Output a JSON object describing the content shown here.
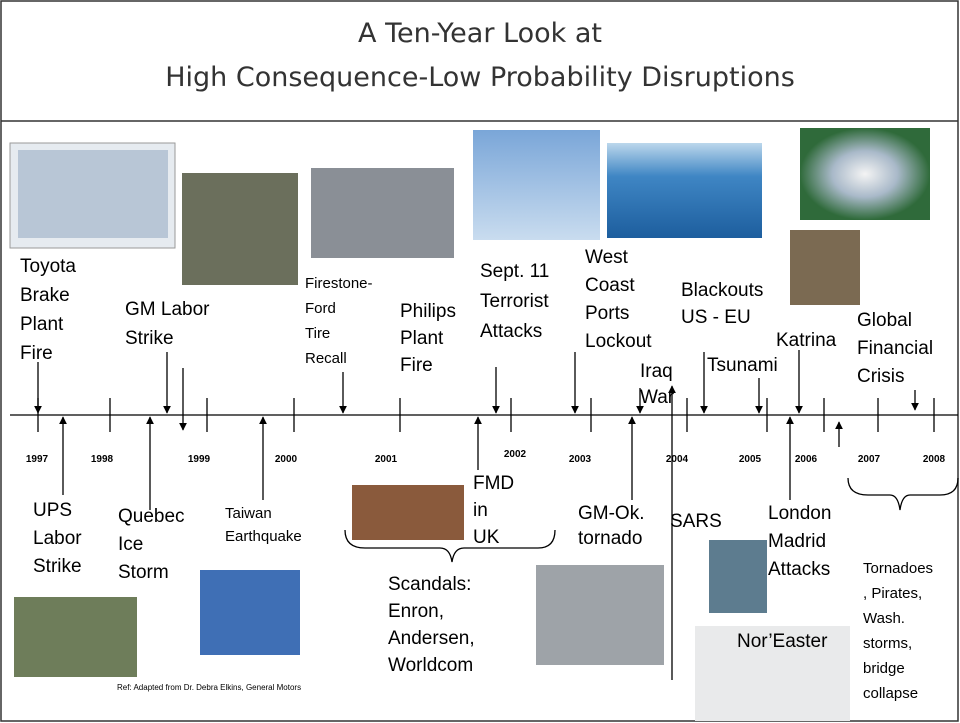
{
  "title": [
    "A Ten-Year Look at",
    "High Consequence-Low Probability Disruptions"
  ],
  "years": [
    "1997",
    "1998",
    "1999",
    "2000",
    "2001",
    "2002",
    "2003",
    "2004",
    "2005",
    "2006",
    "2007",
    "2008"
  ],
  "events_above": [
    {
      "lines": [
        "Toyota",
        "Brake",
        "Plant",
        "Fire"
      ]
    },
    {
      "lines": [
        "GM Labor",
        "Strike"
      ]
    },
    {
      "lines": [
        "Firestone-",
        "Ford",
        "Tire",
        "Recall"
      ]
    },
    {
      "lines": [
        "Philips",
        "Plant",
        "Fire"
      ]
    },
    {
      "lines": [
        "Sept. 11",
        "Terrorist",
        "Attacks"
      ]
    },
    {
      "lines": [
        "West",
        "Coast",
        "Ports",
        "Lockout"
      ]
    },
    {
      "lines": [
        "Iraq",
        "War"
      ]
    },
    {
      "lines": [
        "Blackouts",
        "US - EU"
      ]
    },
    {
      "lines": [
        "Tsunami"
      ]
    },
    {
      "lines": [
        "Katrina"
      ]
    },
    {
      "lines": [
        "Global",
        "Financial",
        "Crisis"
      ]
    }
  ],
  "events_below": [
    {
      "lines": [
        "UPS",
        "Labor",
        "Strike"
      ]
    },
    {
      "lines": [
        "Quebec",
        "Ice",
        "Storm"
      ]
    },
    {
      "lines": [
        "Taiwan",
        "Earthquake"
      ]
    },
    {
      "lines": [
        "FMD",
        "in",
        "UK"
      ]
    },
    {
      "lines": [
        "Scandals:",
        "Enron,",
        "Andersen,",
        "Worldcom"
      ]
    },
    {
      "lines": [
        "GM-Ok.",
        "tornado"
      ]
    },
    {
      "lines": [
        "SARS"
      ]
    },
    {
      "lines": [
        "London",
        "Madrid",
        "Attacks"
      ]
    },
    {
      "lines": [
        "Nor’Easter"
      ]
    },
    {
      "lines": [
        "Tornadoes",
        ", Pirates,",
        "Wash.",
        "storms,",
        "bridge",
        "collapse"
      ]
    }
  ],
  "reference": "Ref: Adapted from Dr. Debra Elkins, General Motors"
}
